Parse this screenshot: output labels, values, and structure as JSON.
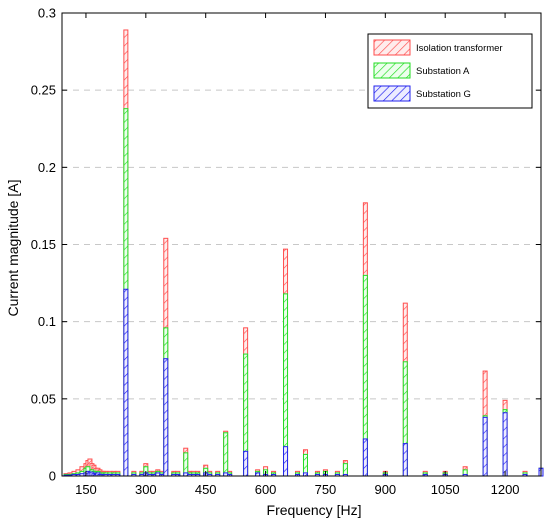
{
  "chart_data": {
    "type": "bar",
    "stacked": true,
    "title": "",
    "xlabel": "Frequency [Hz]",
    "ylabel": "Current magnitude [A]",
    "xlim": [
      90,
      1290
    ],
    "ylim": [
      0,
      0.3
    ],
    "xticks": [
      150,
      300,
      450,
      600,
      750,
      900,
      1050,
      1200
    ],
    "yticks": [
      0,
      0.05,
      0.1,
      0.15,
      0.2,
      0.25,
      0.3
    ],
    "grid": {
      "y": true,
      "x": false
    },
    "legend_position": "top-right",
    "series": [
      {
        "name": "Isolation transformer",
        "color": "#ff4d4d",
        "fill_pattern": "hatch"
      },
      {
        "name": "Substation A",
        "color": "#22dd22",
        "fill_pattern": "hatch"
      },
      {
        "name": "Substation G",
        "color": "#2222ee",
        "fill_pattern": "hatch"
      }
    ],
    "x": [
      100,
      110,
      120,
      130,
      140,
      150,
      155,
      160,
      165,
      170,
      175,
      180,
      185,
      190,
      195,
      200,
      210,
      220,
      230,
      250,
      270,
      290,
      300,
      310,
      320,
      330,
      340,
      350,
      370,
      380,
      400,
      410,
      420,
      430,
      450,
      460,
      480,
      500,
      510,
      550,
      580,
      600,
      620,
      650,
      680,
      700,
      730,
      750,
      780,
      800,
      850,
      900,
      950,
      1000,
      1050,
      1100,
      1150,
      1200,
      1250,
      1290
    ],
    "cumulative": {
      "Substation G": [
        0.0005,
        0.0005,
        0.001,
        0.001,
        0.0015,
        0.002,
        0.003,
        0.002,
        0.0025,
        0.0015,
        0.001,
        0.002,
        0.001,
        0.001,
        0.001,
        0.001,
        0.001,
        0.001,
        0.001,
        0.121,
        0.001,
        0.001,
        0.002,
        0.001,
        0.001,
        0.002,
        0.001,
        0.076,
        0.001,
        0.001,
        0.002,
        0.001,
        0.001,
        0.001,
        0.002,
        0.001,
        0.001,
        0.002,
        0.001,
        0.016,
        0.002,
        0.001,
        0.001,
        0.019,
        0.001,
        0.002,
        0.001,
        0.001,
        0.001,
        0.001,
        0.024,
        0.001,
        0.021,
        0.001,
        0.001,
        0.001,
        0.038,
        0.041,
        0.001,
        0.005
      ],
      "Substation A": [
        0.001,
        0.001,
        0.0015,
        0.002,
        0.003,
        0.005,
        0.006,
        0.003,
        0.004,
        0.003,
        0.002,
        0.003,
        0.002,
        0.002,
        0.002,
        0.002,
        0.002,
        0.002,
        0.002,
        0.238,
        0.002,
        0.002,
        0.006,
        0.002,
        0.002,
        0.003,
        0.002,
        0.096,
        0.002,
        0.002,
        0.015,
        0.002,
        0.002,
        0.002,
        0.005,
        0.002,
        0.002,
        0.028,
        0.002,
        0.079,
        0.003,
        0.004,
        0.002,
        0.118,
        0.002,
        0.014,
        0.002,
        0.003,
        0.002,
        0.008,
        0.13,
        0.002,
        0.074,
        0.002,
        0.002,
        0.004,
        0.039,
        0.043,
        0.002,
        0.005
      ],
      "Isolation transformer": [
        0.0015,
        0.002,
        0.003,
        0.004,
        0.006,
        0.008,
        0.01,
        0.011,
        0.008,
        0.007,
        0.005,
        0.005,
        0.004,
        0.003,
        0.003,
        0.003,
        0.003,
        0.003,
        0.003,
        0.289,
        0.003,
        0.003,
        0.008,
        0.003,
        0.003,
        0.004,
        0.003,
        0.154,
        0.003,
        0.003,
        0.018,
        0.003,
        0.003,
        0.003,
        0.007,
        0.003,
        0.003,
        0.029,
        0.003,
        0.096,
        0.004,
        0.006,
        0.003,
        0.147,
        0.003,
        0.017,
        0.003,
        0.004,
        0.003,
        0.01,
        0.177,
        0.003,
        0.112,
        0.003,
        0.003,
        0.006,
        0.068,
        0.049,
        0.003,
        0.005
      ]
    }
  }
}
